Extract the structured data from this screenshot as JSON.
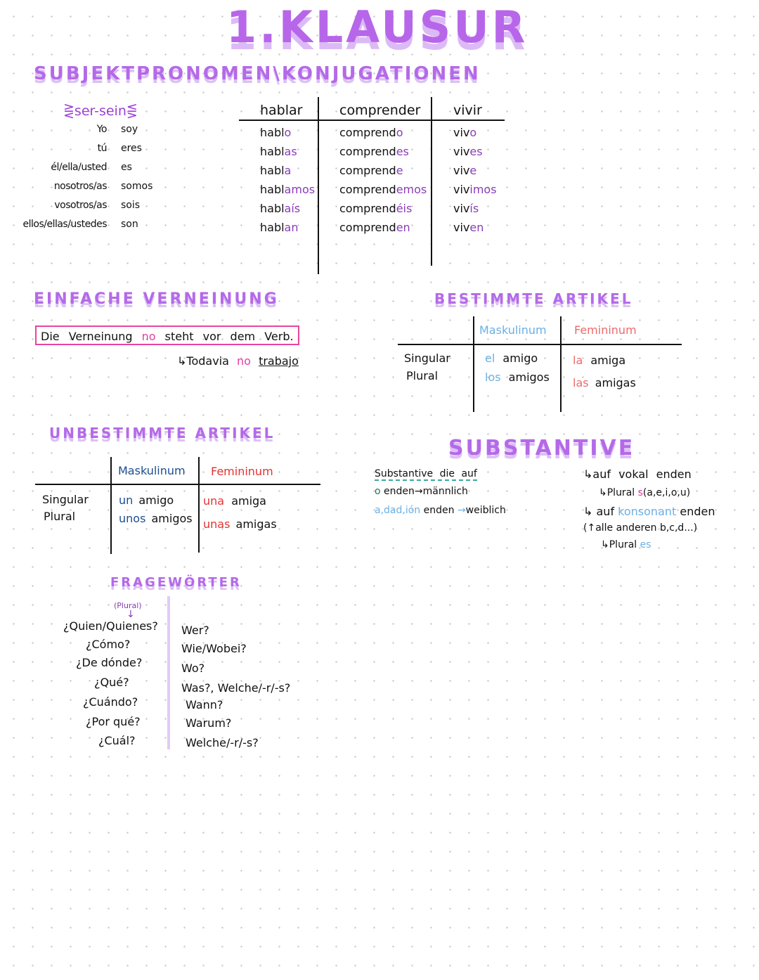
{
  "title": "1.KLAUSUR",
  "section1": {
    "heading": "SUBJEKTPRONOMEN\\KONJUGATIONEN",
    "ser_label": "ser-sein",
    "ser_rows": [
      {
        "pronoun": "Yo",
        "verb": "soy"
      },
      {
        "pronoun": "tú",
        "verb": "eres"
      },
      {
        "pronoun": "él/ella/usted",
        "verb": "es"
      },
      {
        "pronoun": "nosotros/as",
        "verb": "somos"
      },
      {
        "pronoun": "vosotros/as",
        "verb": "sois"
      },
      {
        "pronoun": "ellos/ellas/ustedes",
        "verb": "son"
      }
    ],
    "verbs": [
      {
        "infinitive": "hablar",
        "forms": [
          [
            "habl",
            "o"
          ],
          [
            "habl",
            "as"
          ],
          [
            "habl",
            "a"
          ],
          [
            "habl",
            "amos"
          ],
          [
            "habl",
            "aís"
          ],
          [
            "habl",
            "an"
          ]
        ]
      },
      {
        "infinitive": "comprender",
        "forms": [
          [
            "comprend",
            "o"
          ],
          [
            "comprend",
            "es"
          ],
          [
            "comprend",
            "e"
          ],
          [
            "comprend",
            "emos"
          ],
          [
            "comprend",
            "éis"
          ],
          [
            "comprend",
            "en"
          ]
        ]
      },
      {
        "infinitive": "vivir",
        "forms": [
          [
            "viv",
            "o"
          ],
          [
            "viv",
            "es"
          ],
          [
            "viv",
            "e"
          ],
          [
            "viv",
            "imos"
          ],
          [
            "viv",
            "ís"
          ],
          [
            "viv",
            "en"
          ]
        ]
      }
    ]
  },
  "verneinung": {
    "heading": "EINFACHE VERNEINUNG",
    "sentence": {
      "before": "Die Verneinung",
      "no": "no",
      "after": "steht vor dem Verb."
    },
    "example": {
      "arrow": "↳",
      "before": "Todavia",
      "no": "no",
      "after": "trabajo"
    }
  },
  "bestimmte": {
    "heading": "BESTIMMTE ARTIKEL",
    "col_m": "Maskulinum",
    "col_f": "Femininum",
    "rows": [
      "Singular",
      "Plural"
    ],
    "m": [
      [
        "el",
        "amigo"
      ],
      [
        "los",
        "amigos"
      ]
    ],
    "f": [
      [
        "la",
        "amiga"
      ],
      [
        "las",
        "amigas"
      ]
    ]
  },
  "unbestimmte": {
    "heading": "UNBESTIMMTE ARTIKEL",
    "col_m": "Maskulinum",
    "col_f": "Femininum",
    "rows": [
      "Singular",
      "Plural"
    ],
    "m": [
      [
        "un",
        "amigo"
      ],
      [
        "unos",
        "amigos"
      ]
    ],
    "f": [
      [
        "una",
        "amiga"
      ],
      [
        "unas",
        "amigas"
      ]
    ]
  },
  "substantive": {
    "heading": "SUBSTANTIVE",
    "left": {
      "line1": "Substantive die auf",
      "line2_o": "o",
      "line2": "enden→männlich",
      "line3_end": "a,dad,ión",
      "line3": "enden",
      "line3_arrow": "→",
      "line3_b": "weiblich"
    },
    "right": {
      "l1": "↳auf vokal enden",
      "l2": "↳Plural",
      "l2_s": "s",
      "l2_b": "(a,e,i,o,u)",
      "l3": "↳ auf",
      "l3_k": "konsonant",
      "l3_b": "enden",
      "l4": "(↑alle anderen b,c,d...)",
      "l5": "↳Plural",
      "l5_es": "es"
    }
  },
  "fragewoerter": {
    "heading": "FRAGEWÖRTER",
    "plural_note": "(Plural)",
    "spanish": [
      "¿Quien/Quienes?",
      "¿Cómo?",
      "¿De dónde?",
      "¿Qué?",
      "¿Cuándo?",
      "¿Por qué?",
      "¿Cuál?"
    ],
    "german": [
      "Wer?",
      "Wie/Wobei?",
      "Wo?",
      "Was?, Welche/-r/-s?",
      "Wann?",
      "Warum?",
      "Welche/-r/-s?"
    ]
  }
}
